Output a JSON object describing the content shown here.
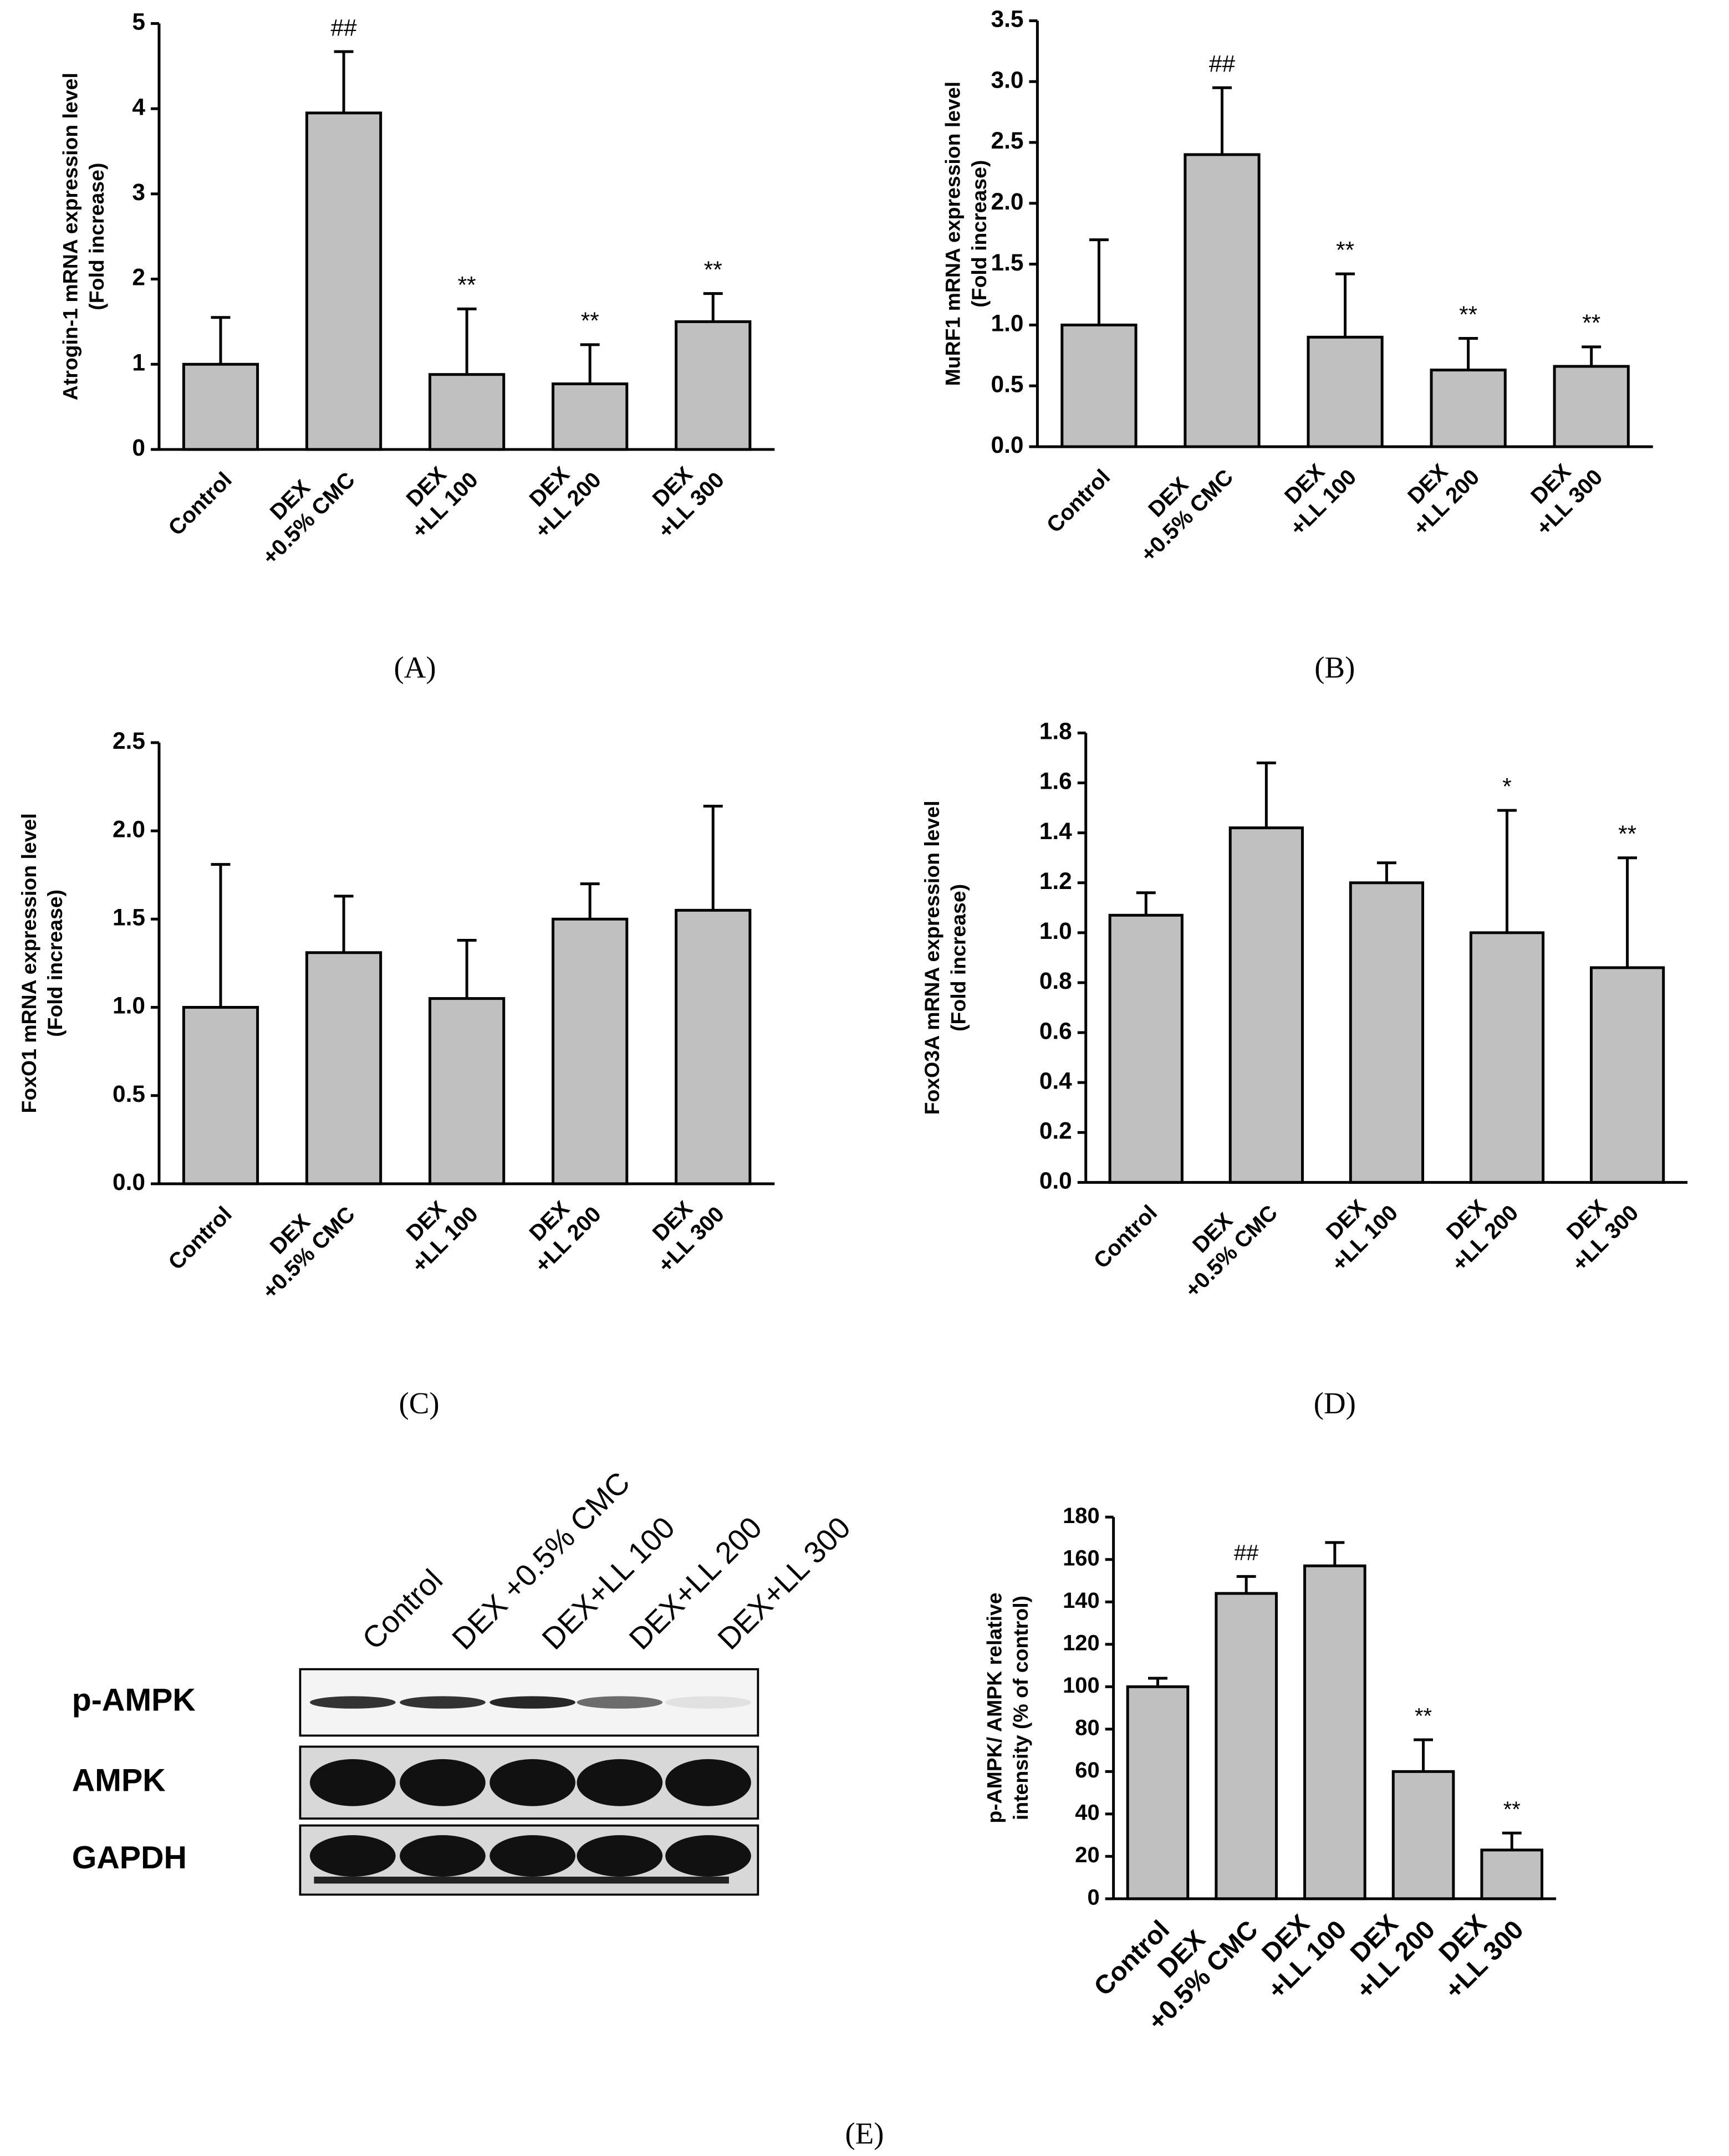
{
  "chart_data": [
    {
      "type": "bar",
      "panel": "(A)",
      "ylabel": [
        "Atrogin-1  mRNA expression level",
        "(Fold increase)"
      ],
      "categories": [
        [
          "Control"
        ],
        [
          "DEX",
          "+0.5% CMC"
        ],
        [
          "DEX",
          "+LL 100"
        ],
        [
          "DEX",
          "+LL 200"
        ],
        [
          "DEX",
          "+LL 300"
        ]
      ],
      "values": [
        1.0,
        3.95,
        0.88,
        0.77,
        1.5
      ],
      "errors": [
        0.55,
        0.72,
        0.77,
        0.46,
        0.33
      ],
      "significance": [
        null,
        "##",
        "**",
        "**",
        "**"
      ],
      "color": "#c0c0c0",
      "ylim": [
        0,
        5
      ],
      "yticks": [
        0,
        1,
        2,
        3,
        4,
        5
      ]
    },
    {
      "type": "bar",
      "panel": "(B)",
      "ylabel": [
        "MuRF1  mRNA expression level",
        "(Fold increase)"
      ],
      "categories": [
        [
          "Control"
        ],
        [
          "DEX",
          "+0.5% CMC"
        ],
        [
          "DEX",
          "+LL 100"
        ],
        [
          "DEX",
          "+LL 200"
        ],
        [
          "DEX",
          "+LL 300"
        ]
      ],
      "values": [
        1.0,
        2.4,
        0.9,
        0.63,
        0.66
      ],
      "errors": [
        0.7,
        0.55,
        0.52,
        0.26,
        0.16
      ],
      "significance": [
        null,
        "##",
        "**",
        "**",
        "**"
      ],
      "color": "#c0c0c0",
      "ylim": [
        0,
        3.5
      ],
      "yticks": [
        {
          "value": 0,
          "label": "0.0"
        },
        0.5,
        {
          "value": 1,
          "label": "1.0"
        },
        1.5,
        {
          "value": 2,
          "label": "2.0"
        },
        2.5,
        {
          "value": 3,
          "label": "3.0"
        },
        3.5
      ]
    },
    {
      "type": "bar",
      "panel": "(C)",
      "ylabel": [
        "FoxO1  mRNA expression level",
        "(Fold increase)"
      ],
      "categories": [
        [
          "Control"
        ],
        [
          "DEX",
          "+0.5% CMC"
        ],
        [
          "DEX",
          "+LL 100"
        ],
        [
          "DEX",
          "+LL 200"
        ],
        [
          "DEX",
          "+LL 300"
        ]
      ],
      "values": [
        1.0,
        1.31,
        1.05,
        1.5,
        1.55
      ],
      "errors": [
        0.81,
        0.32,
        0.33,
        0.2,
        0.59
      ],
      "color": "#c0c0c0",
      "ylim": [
        0,
        2.5
      ],
      "yticks": [
        {
          "value": 0,
          "label": "0.0"
        },
        0.5,
        {
          "value": 1,
          "label": "1.0"
        },
        1.5,
        {
          "value": 2,
          "label": "2.0"
        },
        2.5
      ]
    },
    {
      "type": "bar",
      "panel": "(D)",
      "ylabel": [
        "FoxO3A  mRNA expression level",
        "(Fold increase)"
      ],
      "categories": [
        [
          "Control"
        ],
        [
          "DEX",
          "+0.5% CMC"
        ],
        [
          "DEX",
          "+LL 100"
        ],
        [
          "DEX",
          "+LL 200"
        ],
        [
          "DEX",
          "+LL 300"
        ]
      ],
      "values": [
        1.07,
        1.42,
        1.2,
        1.0,
        0.86
      ],
      "errors": [
        0.09,
        0.26,
        0.08,
        0.49,
        0.44
      ],
      "significance": [
        null,
        null,
        null,
        "*",
        "**"
      ],
      "color": "#c0c0c0",
      "ylim": [
        0,
        1.8
      ],
      "yticks": [
        {
          "value": 0,
          "label": "0.0"
        },
        0.2,
        0.4,
        0.6,
        0.8,
        {
          "value": 1,
          "label": "1.0"
        },
        1.2,
        1.4,
        1.6,
        1.8
      ]
    },
    {
      "type": "bar",
      "panel": "(E)",
      "ylabel": [
        "p-AMPK/ AMPK relative",
        "intensity (% of control)"
      ],
      "categories": [
        [
          "Control"
        ],
        [
          "DEX",
          "+0.5% CMC"
        ],
        [
          "DEX",
          "+LL 100"
        ],
        [
          "DEX",
          "+LL 200"
        ],
        [
          "DEX",
          "+LL 300"
        ]
      ],
      "values": [
        100,
        144,
        157,
        60,
        23
      ],
      "errors": [
        4,
        8,
        11,
        15,
        8
      ],
      "significance": [
        null,
        "##",
        null,
        "**",
        "**"
      ],
      "color": "#c0c0c0",
      "ylim": [
        0,
        180
      ],
      "yticks": [
        0,
        20,
        40,
        60,
        80,
        100,
        120,
        140,
        160,
        180
      ],
      "blot": {
        "lanes": [
          "Control",
          "DEX +0.5% CMC",
          "DEX+LL 100",
          "DEX+LL 200",
          "DEX+LL 300"
        ],
        "rows": [
          "p-AMPK",
          "AMPK",
          "GAPDH"
        ]
      }
    }
  ]
}
